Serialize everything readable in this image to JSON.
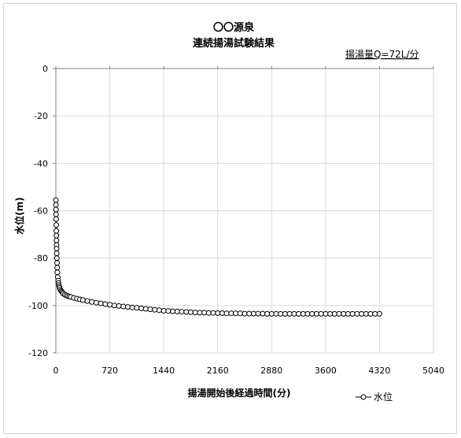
{
  "chart_data": {
    "type": "scatter",
    "title": "〇〇源泉",
    "subtitle": "連続揚湯試験結果",
    "annotation": "揚湯量Q=72L/分",
    "xlabel": "揚湯開始後経過時間(分)",
    "ylabel": "水位(m)",
    "xlim": [
      0,
      5040
    ],
    "ylim": [
      -120,
      0
    ],
    "x_ticks": [
      0,
      720,
      1440,
      2160,
      2880,
      3600,
      4320,
      5040
    ],
    "y_ticks": [
      0,
      -20,
      -40,
      -60,
      -80,
      -100,
      -120
    ],
    "x_tick_labels": [
      "0",
      "720",
      "1440",
      "2160",
      "2880",
      "3600",
      "4320",
      "5040"
    ],
    "y_tick_labels": [
      "0",
      "-20",
      "-40",
      "-60",
      "-80",
      "-100",
      "-120"
    ],
    "grid": true,
    "legend_position": "bottom-right",
    "series": [
      {
        "name": "水位",
        "color": "#000000",
        "marker": "open-circle",
        "x": [
          0,
          1,
          2,
          3,
          4,
          5,
          6,
          7,
          8,
          9,
          10,
          12,
          14,
          16,
          18,
          20,
          25,
          30,
          35,
          40,
          45,
          50,
          60,
          70,
          80,
          90,
          100,
          120,
          140,
          160,
          180,
          200,
          240,
          280,
          320,
          360,
          420,
          480,
          540,
          600,
          660,
          720,
          780,
          840,
          900,
          960,
          1020,
          1080,
          1140,
          1200,
          1260,
          1320,
          1380,
          1440,
          1500,
          1560,
          1620,
          1680,
          1740,
          1800,
          1860,
          1920,
          1980,
          2040,
          2100,
          2160,
          2220,
          2280,
          2340,
          2400,
          2460,
          2520,
          2580,
          2640,
          2700,
          2760,
          2820,
          2880,
          2940,
          3000,
          3060,
          3120,
          3180,
          3240,
          3300,
          3360,
          3420,
          3480,
          3540,
          3600,
          3660,
          3720,
          3780,
          3840,
          3900,
          3960,
          4020,
          4080,
          4140,
          4200,
          4260,
          4320
        ],
        "y": [
          -55.5,
          -57.5,
          -59.5,
          -61.5,
          -63.5,
          -66,
          -68.5,
          -70.5,
          -72.5,
          -74.5,
          -76,
          -78,
          -80,
          -82,
          -84,
          -86,
          -88,
          -89.5,
          -90.5,
          -91.3,
          -92,
          -92.6,
          -93.3,
          -93.8,
          -94.2,
          -94.6,
          -95,
          -95.4,
          -95.7,
          -96,
          -96.2,
          -96.4,
          -96.8,
          -97.1,
          -97.4,
          -97.7,
          -98.1,
          -98.5,
          -98.8,
          -99.1,
          -99.4,
          -99.7,
          -100,
          -100.2,
          -100.4,
          -100.6,
          -100.8,
          -101,
          -101.2,
          -101.4,
          -101.6,
          -101.8,
          -102,
          -102.2,
          -102.3,
          -102.4,
          -102.5,
          -102.6,
          -102.7,
          -102.8,
          -102.9,
          -103,
          -103,
          -103.1,
          -103.1,
          -103.2,
          -103.2,
          -103.3,
          -103.3,
          -103.3,
          -103.3,
          -103.4,
          -103.4,
          -103.4,
          -103.4,
          -103.4,
          -103.5,
          -103.5,
          -103.5,
          -103.5,
          -103.5,
          -103.5,
          -103.5,
          -103.5,
          -103.5,
          -103.5,
          -103.5,
          -103.5,
          -103.5,
          -103.5,
          -103.5,
          -103.5,
          -103.5,
          -103.5,
          -103.5,
          -103.5,
          -103.5,
          -103.5,
          -103.5,
          -103.5,
          -103.5,
          -103.5
        ]
      }
    ]
  }
}
